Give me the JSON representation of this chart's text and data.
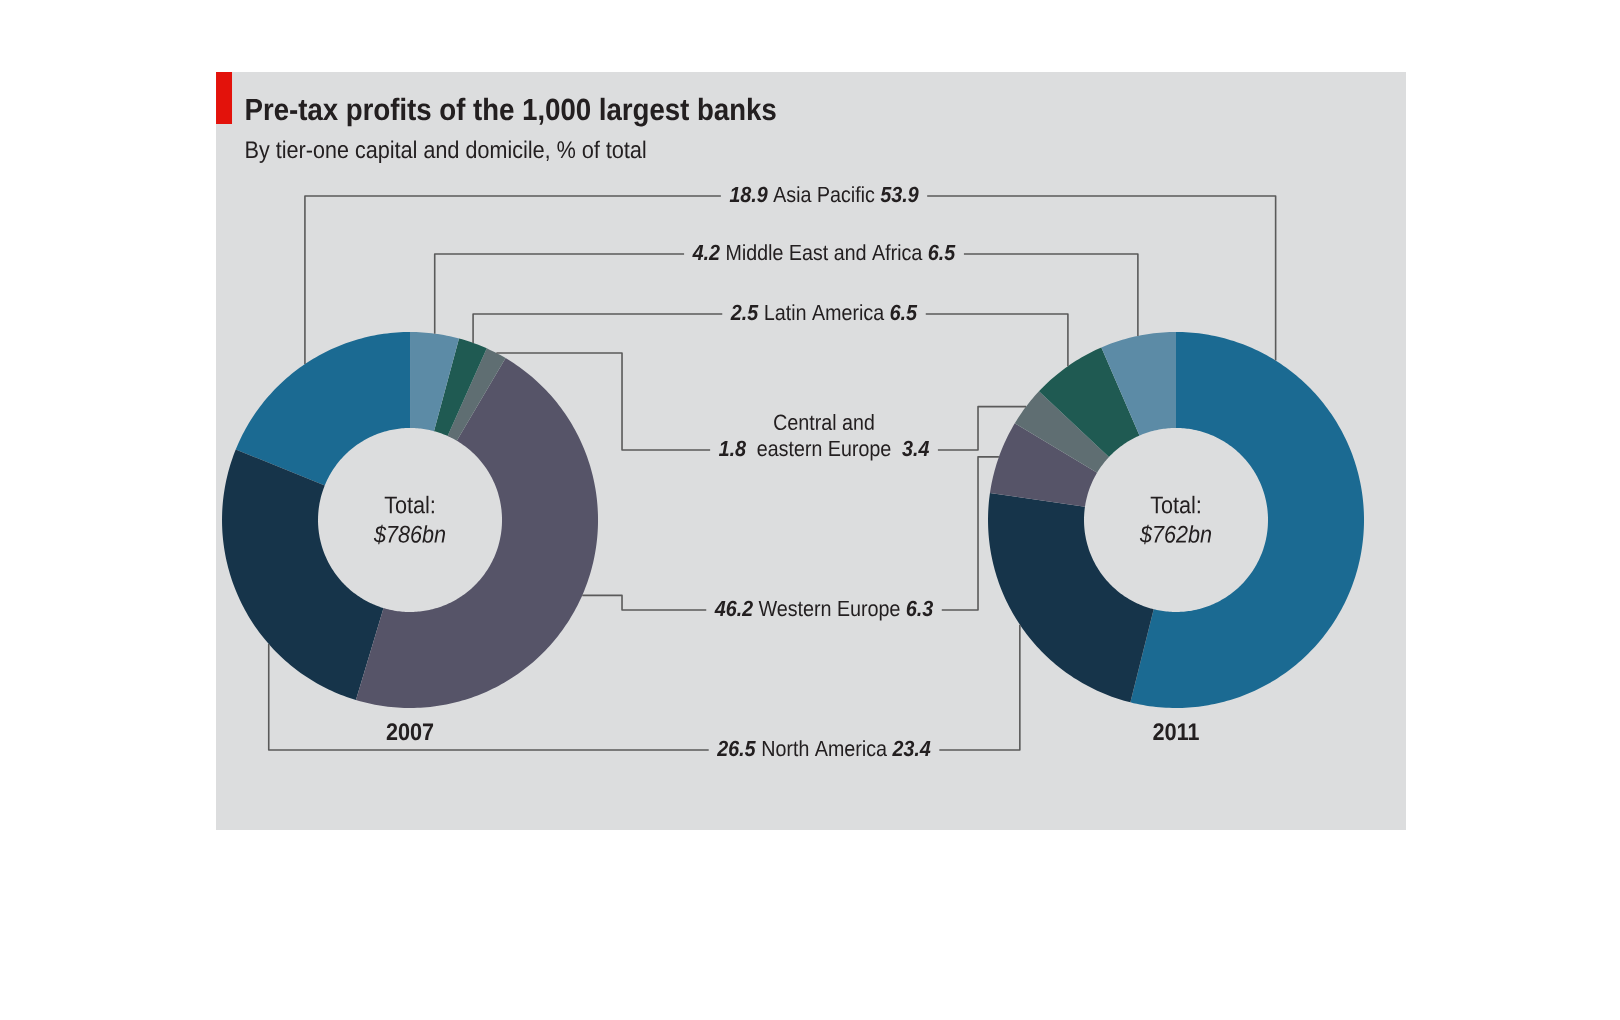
{
  "chart_data": {
    "type": "donut",
    "title": "Pre-tax profits of the 1,000 largest banks",
    "subtitle": "By tier-one capital and domicile, % of total",
    "categories": [
      "Asia Pacific",
      "Middle East and Africa",
      "Latin America",
      "Central and eastern Europe",
      "Western Europe",
      "North America"
    ],
    "colors": [
      "#1b6a92",
      "#5c8ba6",
      "#1f5a52",
      "#5f6e72",
      "#565468",
      "#16344a"
    ],
    "series": [
      {
        "name": "2007",
        "values": [
          18.9,
          4.2,
          2.5,
          1.8,
          46.2,
          26.5
        ]
      },
      {
        "name": "2011",
        "values": [
          53.9,
          6.5,
          6.5,
          3.4,
          6.3,
          23.4
        ]
      }
    ],
    "annotations": [
      "Total: *$786bn*",
      "Total: *$762bn*"
    ],
    "data_labels": true
  }
}
